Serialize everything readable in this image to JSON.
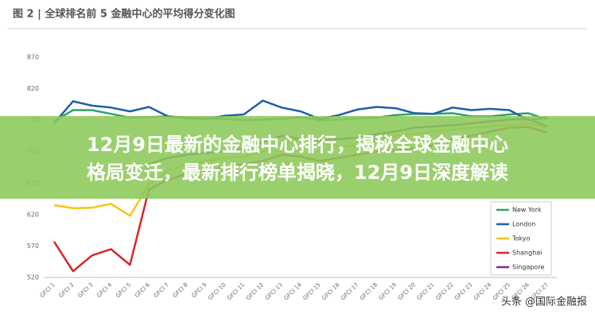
{
  "chart_data": {
    "type": "line",
    "title": "图 2 | 全球排名前 5 金融中心的平均得分变化图",
    "categories": [
      "GFCI 1",
      "GFCI 2",
      "GFCI 3",
      "GFCI 4",
      "GFCI 5",
      "GFCI 6",
      "GFCI 7",
      "GFCI 8",
      "GFCI 9",
      "GFCI 10",
      "GFCI 11",
      "GFCI 12",
      "GFCI 13",
      "GFCI 14",
      "GFCI 15",
      "GFCI 16",
      "GFCI 17",
      "GFCI 18",
      "GFCI 19",
      "GFCI 20",
      "GFCI 21",
      "GFCI 22",
      "GFCI 23",
      "GFCI 24",
      "GFCI 25",
      "GFCI 26",
      "GFCI 27"
    ],
    "series": [
      {
        "name": "New York",
        "color": "#2ea36b",
        "values": [
          768,
          786,
          786,
          780,
          774,
          775,
          776,
          774,
          773,
          772,
          770,
          771,
          772,
          775,
          770,
          771,
          773,
          774,
          778,
          780,
          780,
          781,
          776,
          776,
          779,
          781,
          771
        ]
      },
      {
        "name": "London",
        "color": "#1f5fa8",
        "values": [
          765,
          800,
          793,
          790,
          784,
          791,
          776,
          773,
          772,
          777,
          779,
          801,
          790,
          784,
          772,
          778,
          787,
          791,
          789,
          781,
          780,
          790,
          786,
          788,
          786,
          770,
          774
        ]
      },
      {
        "name": "Tokyo",
        "color": "#f5c518",
        "values": [
          635,
          630,
          631,
          637,
          618,
          668,
          690,
          700,
          705,
          710,
          712,
          720,
          735,
          740,
          735,
          728,
          730,
          737,
          745,
          748,
          752,
          755,
          758,
          760,
          762,
          765,
          758
        ]
      },
      {
        "name": "Shanghai",
        "color": "#d7262b",
        "values": [
          577,
          530,
          555,
          565,
          540,
          660,
          675,
          685,
          690,
          695,
          700,
          705,
          715,
          712,
          705,
          710,
          715,
          720,
          722,
          725,
          730,
          740,
          745,
          752,
          758,
          759,
          750
        ]
      },
      {
        "name": "Singapore",
        "color": "#7b2d8e",
        "values": [
          null,
          null,
          null,
          null,
          null,
          700,
          710,
          715,
          718,
          720,
          725,
          735,
          745,
          740,
          738,
          740,
          742,
          748,
          752,
          758,
          760,
          762,
          765,
          768,
          771,
          772,
          760
        ]
      }
    ],
    "ylim": [
      520,
      870
    ],
    "yticks": [
      520,
      570,
      620,
      670,
      720,
      770,
      820,
      870
    ]
  },
  "banner": {
    "lines": [
      "12月9日最新的金融中心排行，揭秘全球金融中心",
      "格局变迁，最新排行榜单揭晓，12月9日深度解读"
    ]
  },
  "watermark": "头条 @国际金融报"
}
